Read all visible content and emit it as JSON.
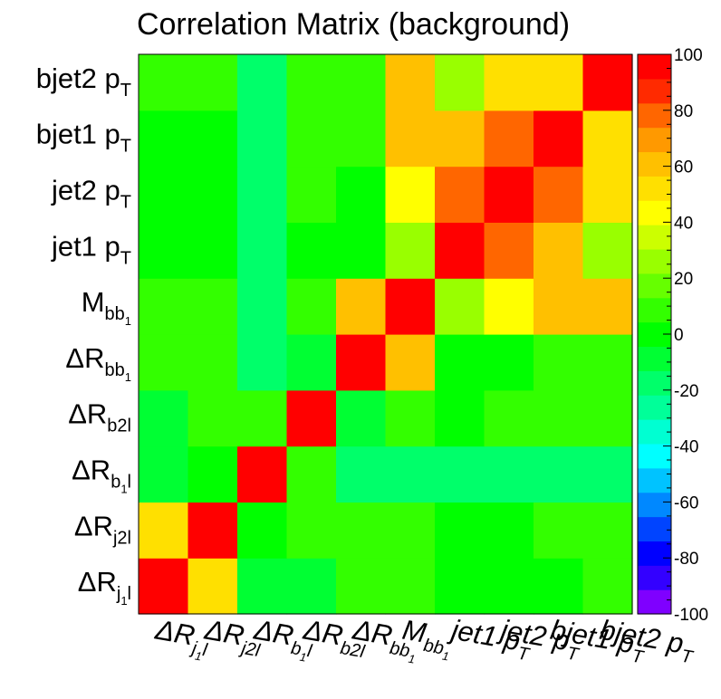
{
  "chart_data": {
    "type": "heatmap",
    "title": "Correlation Matrix (background)",
    "x_labels": [
      {
        "main": "ΔR",
        "sub": "j",
        "subsub": "1",
        "tail": "l"
      },
      {
        "main": "ΔR",
        "sub": "j2l",
        "subsub": "",
        "tail": ""
      },
      {
        "main": "ΔR",
        "sub": "b",
        "subsub": "1",
        "tail": "l"
      },
      {
        "main": "ΔR",
        "sub": "b2l",
        "subsub": "",
        "tail": ""
      },
      {
        "main": "ΔR",
        "sub": "bb",
        "subsub": "1",
        "tail": ""
      },
      {
        "main": "M",
        "sub": "bb",
        "subsub": "1",
        "tail": ""
      },
      {
        "main": "jet1 p",
        "sub": "T",
        "subsub": "",
        "tail": ""
      },
      {
        "main": "jet2 p",
        "sub": "T",
        "subsub": "",
        "tail": ""
      },
      {
        "main": "bjet1 p",
        "sub": "T",
        "subsub": "",
        "tail": ""
      },
      {
        "main": "bjet2 p",
        "sub": "T",
        "subsub": "",
        "tail": ""
      }
    ],
    "y_labels": [
      {
        "main": "ΔR",
        "sub": "j",
        "subsub": "1",
        "tail": "l"
      },
      {
        "main": "ΔR",
        "sub": "j2l",
        "subsub": "",
        "tail": ""
      },
      {
        "main": "ΔR",
        "sub": "b",
        "subsub": "1",
        "tail": "l"
      },
      {
        "main": "ΔR",
        "sub": "b2l",
        "subsub": "",
        "tail": ""
      },
      {
        "main": "ΔR",
        "sub": "bb",
        "subsub": "1",
        "tail": ""
      },
      {
        "main": "M",
        "sub": "bb",
        "subsub": "1",
        "tail": ""
      },
      {
        "main": "jet1 p",
        "sub": "T",
        "subsub": "",
        "tail": ""
      },
      {
        "main": "jet2 p",
        "sub": "T",
        "subsub": "",
        "tail": ""
      },
      {
        "main": "bjet1 p",
        "sub": "T",
        "subsub": "",
        "tail": ""
      },
      {
        "main": "bjet2 p",
        "sub": "T",
        "subsub": "",
        "tail": ""
      }
    ],
    "values_note": "rows ordered bottom-to-top, columns left-to-right",
    "values": [
      [
        100,
        50,
        -10,
        -10,
        10,
        10,
        0,
        0,
        0,
        5
      ],
      [
        50,
        100,
        0,
        5,
        10,
        5,
        0,
        0,
        5,
        5
      ],
      [
        -10,
        0,
        100,
        5,
        -20,
        -20,
        -20,
        -20,
        -20,
        -20
      ],
      [
        -5,
        5,
        5,
        100,
        -5,
        5,
        0,
        5,
        5,
        5
      ],
      [
        10,
        10,
        -20,
        -5,
        100,
        60,
        0,
        0,
        5,
        10
      ],
      [
        5,
        5,
        -20,
        5,
        60,
        100,
        30,
        40,
        60,
        60
      ],
      [
        0,
        0,
        -20,
        0,
        0,
        30,
        100,
        75,
        60,
        30
      ],
      [
        0,
        0,
        -20,
        5,
        0,
        45,
        75,
        100,
        75,
        50
      ],
      [
        0,
        0,
        -20,
        5,
        5,
        60,
        60,
        75,
        100,
        50
      ],
      [
        5,
        5,
        -20,
        5,
        10,
        60,
        30,
        50,
        50,
        100
      ]
    ],
    "zlim": [
      -100,
      100
    ],
    "z_ticks": [
      "100",
      "80",
      "60",
      "40",
      "20",
      "0",
      "-20",
      "-40",
      "-60",
      "-80",
      "-100"
    ],
    "palette": [
      "#7f00ff",
      "#3300ff",
      "#0000ff",
      "#0044ff",
      "#0088ff",
      "#00c3ff",
      "#00ffff",
      "#00ffd2",
      "#00ff99",
      "#00ff6a",
      "#00ff33",
      "#00ff00",
      "#33ff00",
      "#66ff00",
      "#99ff00",
      "#ccff00",
      "#ffff00",
      "#ffe000",
      "#ffc000",
      "#ff9900",
      "#ff6600",
      "#ff2a00",
      "#ff0000"
    ]
  }
}
